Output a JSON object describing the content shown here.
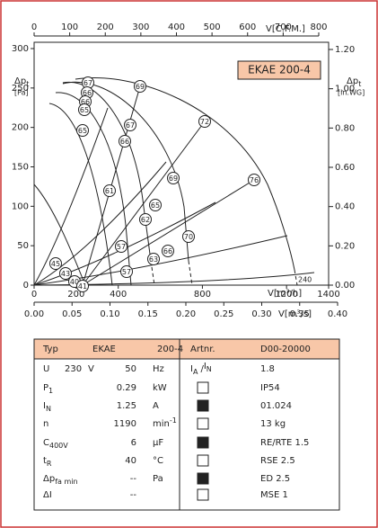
{
  "chart": {
    "badge": "EKAE 200-4",
    "y_label": "Δp",
    "y_label_sub": "t",
    "y_unit": "[Pa]",
    "y2_label": "Δp",
    "y2_label_sub": "t",
    "y2_unit": "[in.WG]",
    "x_label": "V[m³/h]",
    "x2_label": "V[m³/s]",
    "top_label": "V[C.F.M.]",
    "ylim": [
      0,
      300
    ],
    "yticks": [
      0,
      50,
      100,
      150,
      200,
      250,
      300
    ],
    "y2lim": [
      0,
      1.2
    ],
    "y2ticks": [
      {
        "value": 0,
        "label": "0.00"
      },
      {
        "value": 0.2,
        "label": "0.20"
      },
      {
        "value": 0.4,
        "label": "0.40"
      },
      {
        "value": 0.6,
        "label": "0.60"
      },
      {
        "value": 0.8,
        "label": "0.80"
      },
      {
        "value": 1.0,
        "label": "1.00"
      },
      {
        "value": 1.2,
        "label": "1.20"
      }
    ],
    "xlim": [
      0,
      1400
    ],
    "xticks": [
      0,
      200,
      400,
      800,
      1200,
      1400
    ],
    "x2lim": [
      0,
      0.4
    ],
    "x2ticks": [
      {
        "value": 0,
        "label": "0.00"
      },
      {
        "value": 0.05,
        "label": "0.05"
      },
      {
        "value": 0.1,
        "label": "0.10"
      },
      {
        "value": 0.15,
        "label": "0.15"
      },
      {
        "value": 0.2,
        "label": "0.20"
      },
      {
        "value": 0.25,
        "label": "0.25"
      },
      {
        "value": 0.3,
        "label": "0.30"
      },
      {
        "value": 0.35,
        "label": "0.35"
      },
      {
        "value": 0.4,
        "label": "0.40"
      }
    ],
    "toplim": [
      0,
      800
    ],
    "topticks": [
      0,
      100,
      200,
      300,
      400,
      500,
      600,
      700,
      800
    ],
    "curve_labels": [
      "67",
      "66",
      "66",
      "65",
      "65",
      "69",
      "67",
      "66",
      "61",
      "69",
      "65",
      "62",
      "63",
      "66",
      "57",
      "57",
      "70",
      "72",
      "76",
      "45",
      "43",
      "40",
      "41"
    ],
    "note": "240"
  },
  "table": {
    "header": [
      "Typ",
      "EKAE",
      "200-4",
      "Artnr.",
      "D00-20000"
    ],
    "ratio": {
      "a": "I",
      "a_sub": "A",
      "sep": "/",
      "b": "I",
      "b_sub": "N"
    },
    "rows": [
      {
        "name": "U",
        "sub": "",
        "note": "230",
        "note_unit": "V",
        "value": "50",
        "unit": "Hz",
        "sup": "",
        "spec": "1.8"
      },
      {
        "name": "P",
        "sub": "1",
        "note": "",
        "note_unit": "",
        "value": "0.29",
        "unit": "kW",
        "sup": "",
        "spec": "IP54"
      },
      {
        "name": "I",
        "sub": "N",
        "note": "",
        "note_unit": "",
        "value": "1.25",
        "unit": "A",
        "sup": "",
        "spec": "01.024"
      },
      {
        "name": "n",
        "sub": "",
        "note": "",
        "note_unit": "",
        "value": "1190",
        "unit": "min",
        "sup": "-1",
        "spec": "13 kg"
      },
      {
        "name": "C",
        "sub": "400V",
        "note": "",
        "note_unit": "",
        "value": "6",
        "unit": "µF",
        "sup": "",
        "spec": "RE/RTE 1.5"
      },
      {
        "name": "t",
        "sub": "R",
        "note": "",
        "note_unit": "",
        "value": "40",
        "unit": "°C",
        "sup": "",
        "spec": "RSE 2.5"
      },
      {
        "name": "Δp",
        "sub": "fa min",
        "note": "",
        "note_unit": "",
        "value": "--",
        "unit": "Pa",
        "sup": "",
        "spec": "ED 2.5"
      },
      {
        "name": "ΔI",
        "sub": "",
        "note": "",
        "note_unit": "",
        "value": "--",
        "unit": "",
        "sup": "",
        "spec": "MSE 1"
      }
    ]
  }
}
